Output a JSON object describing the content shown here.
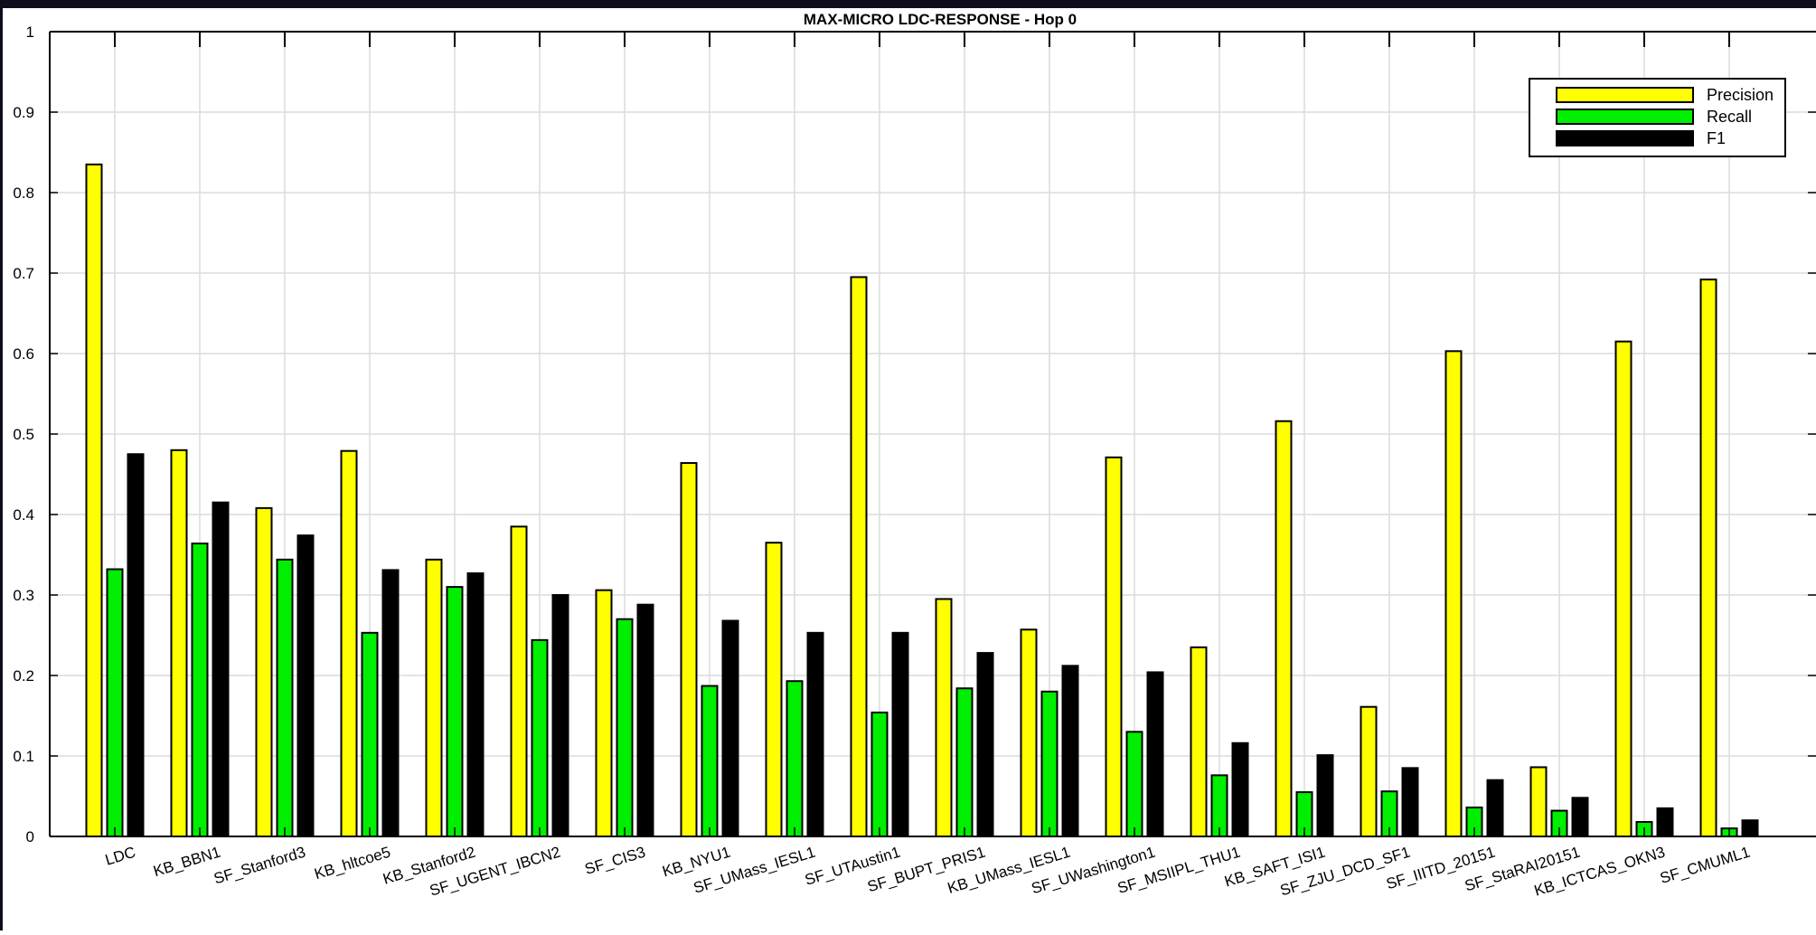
{
  "chart_data": {
    "type": "bar",
    "title": "MAX-MICRO LDC-RESPONSE - Hop 0",
    "xlabel": "",
    "ylabel": "",
    "ylim": [
      0,
      1
    ],
    "yticks": [
      "0",
      "0.1",
      "0.2",
      "0.3",
      "0.4",
      "0.5",
      "0.6",
      "0.7",
      "0.8",
      "0.9",
      "1"
    ],
    "grid": true,
    "legend_position": "top-right",
    "categories": [
      "LDC",
      "KB_BBN1",
      "SF_Stanford3",
      "KB_hltcoe5",
      "KB_Stanford2",
      "SF_UGENT_IBCN2",
      "SF_CIS3",
      "KB_NYU1",
      "SF_UMass_IESL1",
      "SF_UTAustin1",
      "SF_BUPT_PRIS1",
      "KB_UMass_IESL1",
      "SF_UWashington1",
      "SF_MSIIPL_THU1",
      "KB_SAFT_ISI1",
      "SF_ZJU_DCD_SF1",
      "SF_IIITD_20151",
      "SF_StaRAI20151",
      "KB_ICTCAS_OKN3",
      "SF_CMUML1"
    ],
    "series": [
      {
        "name": "Precision",
        "color": "#ffff00",
        "values": [
          0.835,
          0.48,
          0.408,
          0.479,
          0.344,
          0.385,
          0.306,
          0.464,
          0.365,
          0.695,
          0.295,
          0.257,
          0.471,
          0.235,
          0.516,
          0.161,
          0.603,
          0.086,
          0.615,
          0.692
        ]
      },
      {
        "name": "Recall",
        "color": "#00ee00",
        "values": [
          0.332,
          0.364,
          0.344,
          0.253,
          0.31,
          0.244,
          0.27,
          0.187,
          0.193,
          0.154,
          0.184,
          0.18,
          0.13,
          0.076,
          0.055,
          0.056,
          0.036,
          0.032,
          0.018,
          0.01
        ]
      },
      {
        "name": "F1",
        "color": "#000000",
        "values": [
          0.475,
          0.415,
          0.374,
          0.331,
          0.327,
          0.3,
          0.288,
          0.268,
          0.253,
          0.253,
          0.228,
          0.212,
          0.204,
          0.116,
          0.101,
          0.085,
          0.07,
          0.048,
          0.035,
          0.02
        ]
      }
    ]
  }
}
